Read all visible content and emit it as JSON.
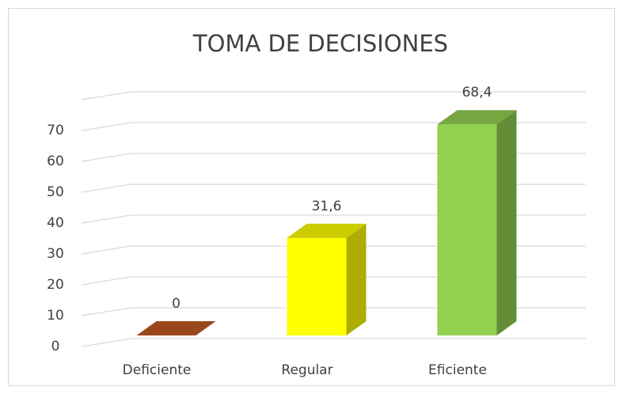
{
  "chart_data": {
    "type": "bar3d",
    "title": "TOMA DE DECISIONES",
    "categories": [
      "Deficiente",
      "Regular",
      "Eficiente"
    ],
    "values": [
      0,
      31.6,
      68.4
    ],
    "value_labels": [
      "0",
      "31,6",
      "68,4"
    ],
    "colors": [
      "#c05a22",
      "#ffff00",
      "#92d050"
    ],
    "ylim": [
      0,
      80
    ],
    "yticks": [
      0,
      10,
      20,
      30,
      40,
      50,
      60,
      70
    ],
    "grid": true
  }
}
